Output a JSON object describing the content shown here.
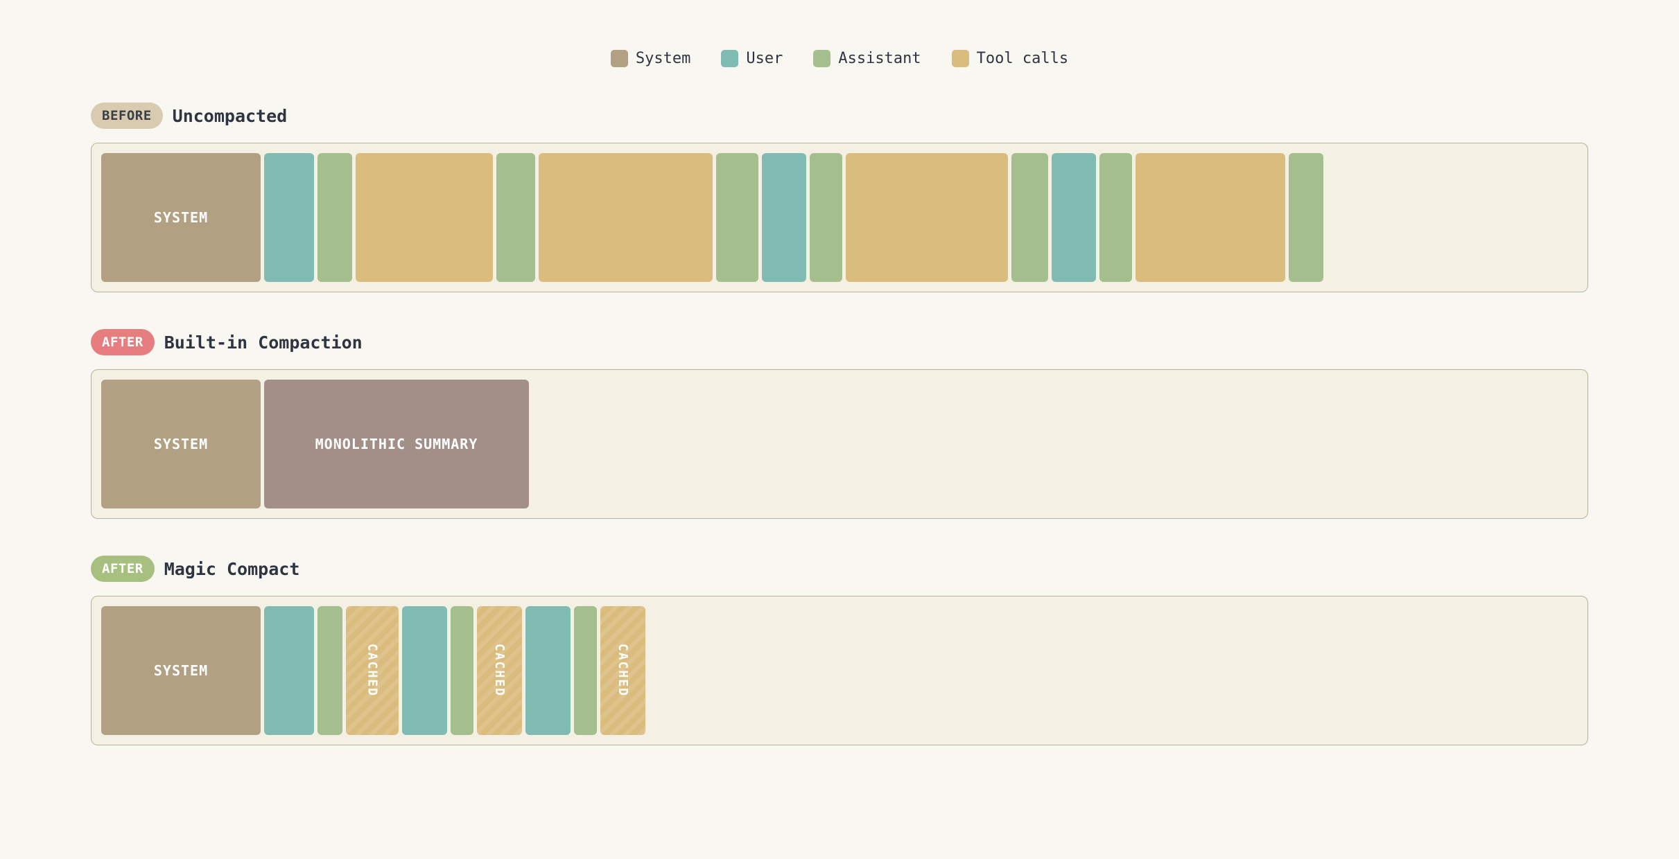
{
  "colors": {
    "system": "#b1a082",
    "user": "#80bbb3",
    "assistant": "#a4bf8d",
    "tool": "#dbbc7f",
    "summary": "#a29088",
    "badge_before_bg": "#d8cbb0",
    "badge_before_fg": "#3b3f44",
    "badge_after_red": "#e67e80",
    "badge_after_green": "#a7c080"
  },
  "legend": [
    {
      "label": "System",
      "color": "#b1a082"
    },
    {
      "label": "User",
      "color": "#80bbb3"
    },
    {
      "label": "Assistant",
      "color": "#a4bf8d"
    },
    {
      "label": "Tool calls",
      "color": "#dbbc7f"
    }
  ],
  "sections": [
    {
      "badge": "BEFORE",
      "title": "Uncompacted",
      "blocks": [
        {
          "kind": "system",
          "label": "SYSTEM",
          "width": 230
        },
        {
          "kind": "user",
          "label": "",
          "width": 72
        },
        {
          "kind": "assistant",
          "label": "",
          "width": 50
        },
        {
          "kind": "tool",
          "label": "",
          "width": 198
        },
        {
          "kind": "assistant",
          "label": "",
          "width": 56
        },
        {
          "kind": "tool",
          "label": "",
          "width": 251
        },
        {
          "kind": "assistant",
          "label": "",
          "width": 61
        },
        {
          "kind": "user",
          "label": "",
          "width": 64
        },
        {
          "kind": "assistant",
          "label": "",
          "width": 47
        },
        {
          "kind": "tool",
          "label": "",
          "width": 234
        },
        {
          "kind": "assistant",
          "label": "",
          "width": 53
        },
        {
          "kind": "user",
          "label": "",
          "width": 64
        },
        {
          "kind": "assistant",
          "label": "",
          "width": 47
        },
        {
          "kind": "tool",
          "label": "",
          "width": 216
        },
        {
          "kind": "assistant",
          "label": "",
          "width": 50
        }
      ]
    },
    {
      "badge": "AFTER",
      "title": "Built-in Compaction",
      "blocks": [
        {
          "kind": "system",
          "label": "SYSTEM",
          "width": 230
        },
        {
          "kind": "summary",
          "label": "MONOLITHIC SUMMARY",
          "width": 382
        }
      ]
    },
    {
      "badge": "AFTER",
      "title": "Magic Compact",
      "blocks": [
        {
          "kind": "system",
          "label": "SYSTEM",
          "width": 230
        },
        {
          "kind": "user",
          "label": "",
          "width": 72
        },
        {
          "kind": "assistant",
          "label": "",
          "width": 36
        },
        {
          "kind": "tool",
          "label": "CACHED",
          "width": 76,
          "cached": true
        },
        {
          "kind": "user",
          "label": "",
          "width": 65
        },
        {
          "kind": "assistant",
          "label": "",
          "width": 33
        },
        {
          "kind": "tool",
          "label": "CACHED",
          "width": 65,
          "cached": true
        },
        {
          "kind": "user",
          "label": "",
          "width": 65
        },
        {
          "kind": "assistant",
          "label": "",
          "width": 33
        },
        {
          "kind": "tool",
          "label": "CACHED",
          "width": 65,
          "cached": true
        }
      ]
    }
  ]
}
